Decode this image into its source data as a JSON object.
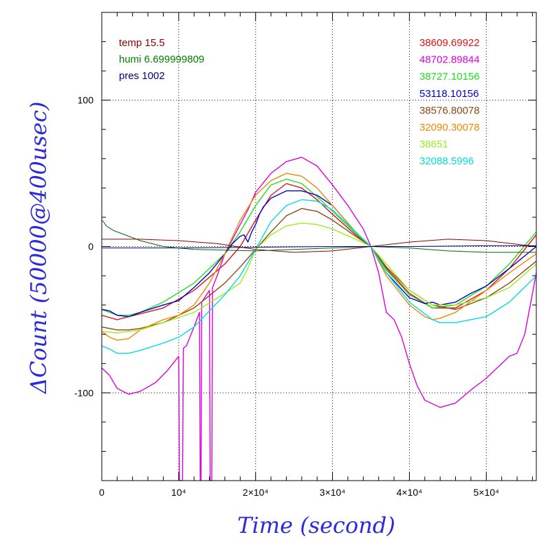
{
  "chart_data": {
    "type": "line",
    "title": "",
    "xlabel": "Time (second)",
    "ylabel": "ΔCount (50000@400usec)",
    "xlim": [
      0,
      56500
    ],
    "ylim": [
      -160,
      160
    ],
    "grid": true,
    "x_ticks": [
      {
        "value": 0,
        "label": "0"
      },
      {
        "value": 10000,
        "label": "10⁴"
      },
      {
        "value": 20000,
        "label": "2×10⁴"
      },
      {
        "value": 30000,
        "label": "3×10⁴"
      },
      {
        "value": 40000,
        "label": "4×10⁴"
      },
      {
        "value": 50000,
        "label": "5×10⁴"
      }
    ],
    "y_ticks": [
      {
        "value": 100,
        "label": "100"
      },
      {
        "value": 0,
        "label": "0"
      },
      {
        "value": -100,
        "label": "-100"
      }
    ],
    "env_legend": [
      {
        "label": "temp 15.5",
        "color": "#8b0000"
      },
      {
        "label": "humi 6.699999809",
        "color": "#008000"
      },
      {
        "label": "pres 1002",
        "color": "#00008b"
      }
    ],
    "series": [
      {
        "name": "38609.69922",
        "color": "#dd1111",
        "x": [
          0,
          2000,
          3500,
          5000,
          8000,
          12000,
          16000,
          18000,
          20000,
          22000,
          24000,
          26000,
          28000,
          30000,
          33000,
          35000,
          37000,
          40000,
          43000,
          46000,
          50000,
          53000,
          56500
        ],
        "y": [
          -47,
          -50,
          -48,
          -46,
          -42,
          -30,
          -12,
          0,
          18,
          35,
          43,
          40,
          32,
          22,
          8,
          0,
          -15,
          -32,
          -42,
          -42,
          -30,
          -15,
          8
        ]
      },
      {
        "name": "48702.89844",
        "color": "#dd00dd",
        "x": [
          0,
          1000,
          2000,
          3500,
          5000,
          7000,
          8500,
          10000,
          10100,
          10200,
          10300,
          10500,
          10600,
          10700,
          11000,
          12000,
          12700,
          12800,
          12900,
          13000,
          14000,
          14100,
          14200,
          14300,
          14400,
          15000,
          16000,
          17000,
          18000,
          19000,
          20000,
          22000,
          24000,
          26000,
          28000,
          30000,
          32000,
          34000,
          35000,
          36000,
          37000,
          38000,
          39000,
          40000,
          41000,
          42000,
          44000,
          46000,
          48000,
          50000,
          52000,
          53000,
          54000,
          55000,
          56500
        ],
        "y": [
          -83,
          -88,
          -97,
          -101,
          -99,
          -93,
          -85,
          -75,
          -160,
          -160,
          -160,
          -160,
          -70,
          -69,
          -68,
          -55,
          -45,
          -160,
          -160,
          -38,
          -30,
          -160,
          -160,
          -160,
          -28,
          -20,
          -5,
          5,
          15,
          25,
          37,
          50,
          58,
          61,
          55,
          42,
          28,
          12,
          0,
          -18,
          -45,
          -50,
          -62,
          -80,
          -95,
          -105,
          -110,
          -107,
          -98,
          -90,
          -80,
          -75,
          -73,
          -60,
          -18
        ]
      },
      {
        "name": "38727.10156",
        "color": "#22dd22",
        "x": [
          0,
          2000,
          3500,
          5000,
          8000,
          12000,
          16000,
          18000,
          20000,
          22000,
          24000,
          26000,
          28000,
          30000,
          33000,
          35000,
          37000,
          40000,
          43000,
          46000,
          50000,
          53000,
          56500
        ],
        "y": [
          -43,
          -47,
          -47,
          -45,
          -38,
          -25,
          -5,
          10,
          28,
          42,
          46,
          43,
          34,
          24,
          9,
          0,
          -16,
          -33,
          -42,
          -40,
          -27,
          -12,
          10
        ]
      },
      {
        "name": "53118.10156",
        "color": "#0000cc",
        "x": [
          0,
          1000,
          2000,
          3500,
          5000,
          8000,
          10000,
          12000,
          14000,
          16000,
          17000,
          18000,
          18500,
          19000,
          19500,
          20000,
          20500,
          21000,
          22000,
          24000,
          26000,
          28000,
          30000,
          33000,
          35000,
          37000,
          40000,
          42000,
          43000,
          44000,
          46000,
          48000,
          50000,
          53000,
          56500
        ],
        "y": [
          -43,
          -44,
          -47,
          -48,
          -45,
          -40,
          -37,
          -28,
          -18,
          -5,
          2,
          7,
          8,
          3,
          10,
          15,
          22,
          27,
          33,
          38,
          38,
          35,
          28,
          10,
          0,
          -18,
          -35,
          -39,
          -38,
          -40,
          -38,
          -32,
          -27,
          -15,
          0
        ]
      },
      {
        "name": "38576.80078",
        "color": "#8b4513",
        "x": [
          0,
          2000,
          3500,
          5000,
          8000,
          12000,
          16000,
          18000,
          20000,
          22000,
          24000,
          26000,
          28000,
          30000,
          33000,
          35000,
          37000,
          40000,
          43000,
          46000,
          50000,
          53000,
          56500
        ],
        "y": [
          -55,
          -57,
          -57,
          -56,
          -52,
          -42,
          -25,
          -14,
          -2,
          10,
          21,
          26,
          24,
          18,
          7,
          0,
          -14,
          -30,
          -40,
          -43,
          -35,
          -25,
          -10
        ]
      },
      {
        "name": "32090.30078",
        "color": "#ee8800",
        "x": [
          0,
          1000,
          2000,
          3500,
          5000,
          8000,
          10000,
          12000,
          14000,
          16000,
          18000,
          20000,
          22000,
          24000,
          26000,
          28000,
          30000,
          33000,
          35000,
          37000,
          40000,
          42000,
          43000,
          44000,
          46000,
          50000,
          53000,
          56500
        ],
        "y": [
          -58,
          -62,
          -64,
          -63,
          -57,
          -50,
          -47,
          -40,
          -25,
          -5,
          18,
          35,
          45,
          50,
          48,
          40,
          28,
          10,
          0,
          -20,
          -40,
          -48,
          -50,
          -49,
          -45,
          -30,
          -18,
          -5
        ]
      },
      {
        "name": "38651",
        "color": "#99ee22",
        "x": [
          0,
          2000,
          3500,
          5000,
          8000,
          12000,
          16000,
          18000,
          19000,
          20000,
          22000,
          24000,
          26000,
          28000,
          30000,
          33000,
          35000,
          37000,
          40000,
          43000,
          46000,
          50000,
          53000,
          56500
        ],
        "y": [
          -58,
          -59,
          -58,
          -57,
          -52,
          -45,
          -32,
          -25,
          -15,
          -2,
          8,
          14,
          16,
          15,
          12,
          5,
          0,
          -12,
          -30,
          -40,
          -40,
          -35,
          -28,
          -12
        ]
      },
      {
        "name": "32088.5996",
        "color": "#00dddd",
        "x": [
          0,
          1000,
          2000,
          3500,
          5000,
          8000,
          10000,
          12000,
          14000,
          16000,
          18000,
          20000,
          22000,
          24000,
          26000,
          28000,
          30000,
          33000,
          35000,
          37000,
          40000,
          43000,
          44000,
          46000,
          50000,
          53000,
          56500
        ],
        "y": [
          -68,
          -70,
          -73,
          -73,
          -71,
          -66,
          -62,
          -55,
          -44,
          -33,
          -20,
          -2,
          17,
          28,
          32,
          31,
          25,
          10,
          0,
          -18,
          -38,
          -50,
          -52,
          -52,
          -48,
          -38,
          -20
        ]
      },
      {
        "name": "temp",
        "color": "#8b0000",
        "x": [
          0,
          5000,
          10000,
          15000,
          20000,
          25000,
          30000,
          35000,
          40000,
          45000,
          50000,
          56500
        ],
        "y": [
          5,
          5,
          4,
          2,
          -2,
          -4,
          -3,
          0,
          3,
          5,
          4,
          0
        ]
      },
      {
        "name": "humi",
        "color": "#006400",
        "x": [
          0,
          200,
          600,
          1500,
          3000,
          5000,
          8000,
          12000,
          20000,
          30000,
          35000,
          40000,
          45000,
          50000,
          56500
        ],
        "y": [
          18,
          17,
          14,
          11,
          8,
          4,
          0,
          -2,
          -3,
          -1,
          0,
          -1,
          -3,
          -4,
          -4
        ]
      },
      {
        "name": "pres",
        "color": "#00008b",
        "x": [
          0,
          10000,
          20000,
          30000,
          40000,
          50000,
          56500
        ],
        "y": [
          -1,
          -1,
          -0.5,
          0,
          0,
          0.5,
          0.5
        ]
      }
    ]
  }
}
